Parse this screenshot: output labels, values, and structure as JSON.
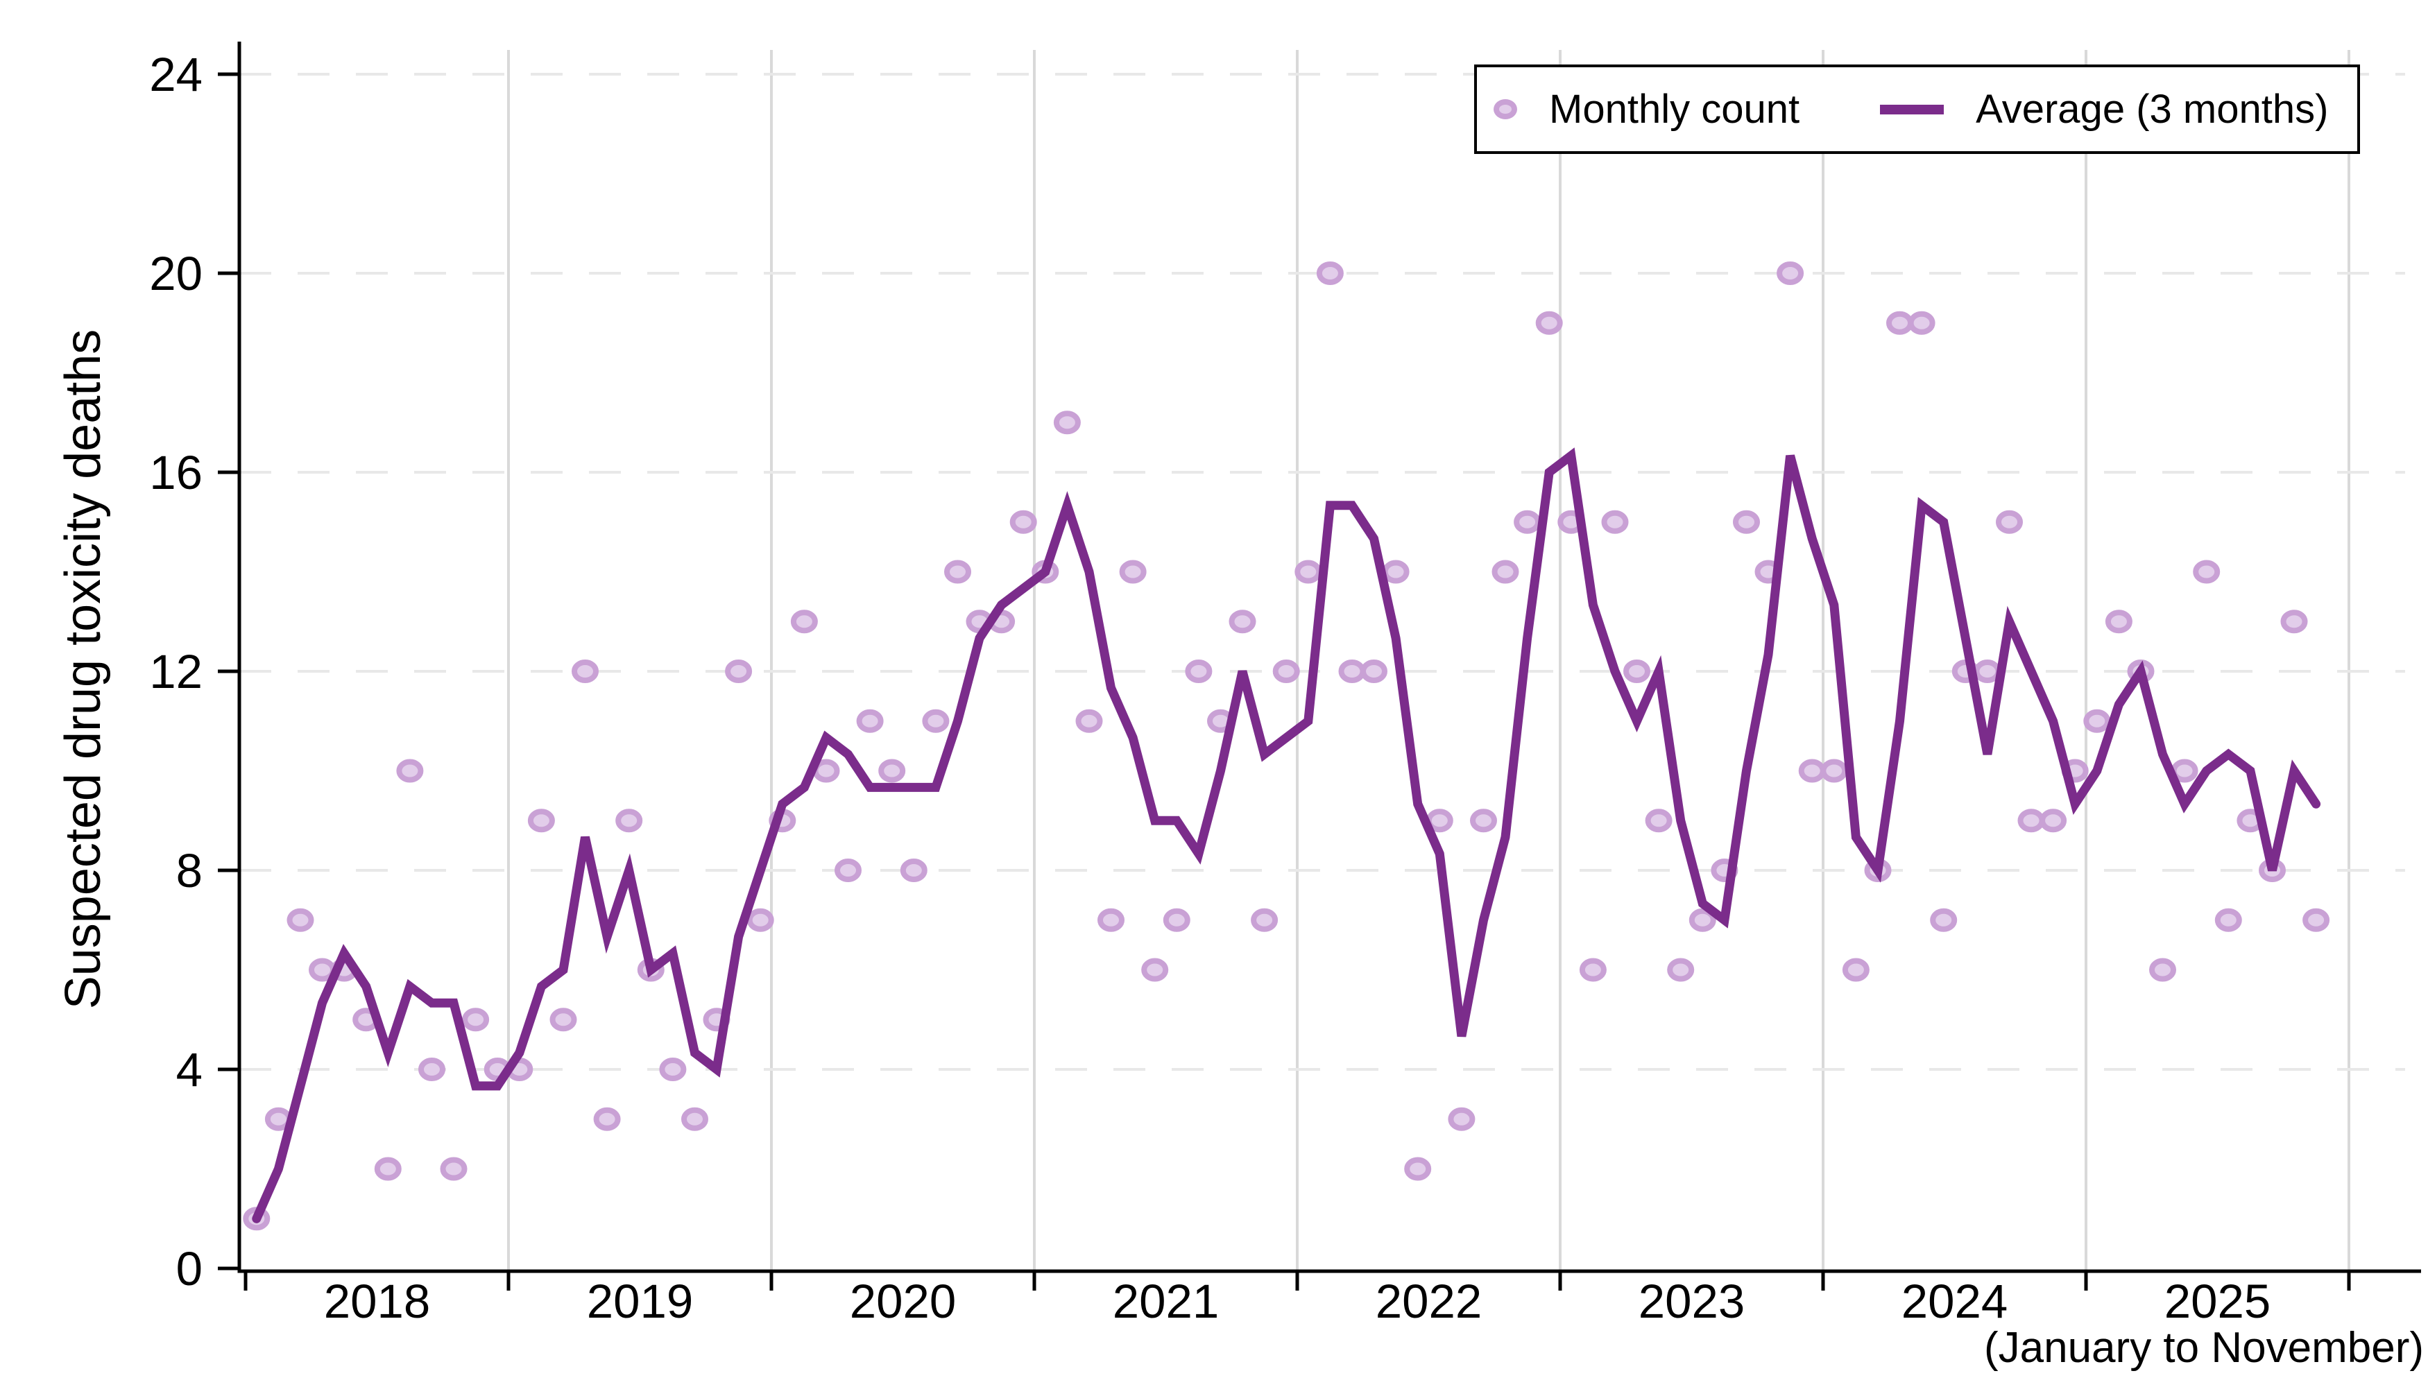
{
  "y_axis": {
    "title": "Suspected drug toxicity deaths",
    "ticks": [
      0,
      4,
      8,
      12,
      16,
      20,
      24
    ]
  },
  "x_axis": {
    "note": "(January to November)",
    "year_labels": [
      "2018",
      "2019",
      "2020",
      "2021",
      "2022",
      "2023",
      "2024",
      "2025"
    ]
  },
  "legend": {
    "items": [
      {
        "label": "Monthly count",
        "swatch": "circle-marker"
      },
      {
        "label": "Average (3 months)",
        "swatch": "line"
      }
    ]
  },
  "colors": {
    "line": "#7b2c8b",
    "marker_fill": "#e2cdea",
    "marker_stroke": "#c9a1d5",
    "grid_horizontal": "#e8e8e8",
    "grid_vertical": "#d9d9d9",
    "axis": "#000000",
    "text": "#000000",
    "background": "#ffffff"
  },
  "chart_data": {
    "type": "scatter",
    "title": "",
    "xlabel": "",
    "ylabel": "Suspected drug toxicity deaths",
    "ylim": [
      0,
      24
    ],
    "yticks": [
      0,
      4,
      8,
      12,
      16,
      20,
      24
    ],
    "grid": true,
    "legend_position": "top-right",
    "x_coverage_note": "monthly data, January 2018 through November 2025",
    "years": [
      {
        "year": "2018",
        "values": [
          1,
          3,
          7,
          6,
          6,
          5,
          2,
          10,
          4,
          2,
          5,
          4
        ]
      },
      {
        "year": "2019",
        "values": [
          4,
          9,
          5,
          12,
          3,
          9,
          6,
          4,
          3,
          5,
          12,
          7
        ]
      },
      {
        "year": "2020",
        "values": [
          9,
          13,
          10,
          8,
          11,
          10,
          8,
          11,
          14,
          13,
          13,
          15
        ]
      },
      {
        "year": "2021",
        "values": [
          14,
          17,
          11,
          7,
          14,
          6,
          7,
          12,
          11,
          13,
          7,
          12
        ]
      },
      {
        "year": "2022",
        "values": [
          14,
          20,
          12,
          12,
          14,
          2,
          9,
          3,
          9,
          14,
          15,
          19
        ]
      },
      {
        "year": "2023",
        "values": [
          15,
          6,
          15,
          12,
          9,
          6,
          7,
          8,
          15,
          14,
          20,
          10
        ]
      },
      {
        "year": "2024",
        "values": [
          10,
          6,
          8,
          19,
          19,
          7,
          12,
          12,
          15,
          9,
          9,
          10
        ]
      },
      {
        "year": "2025",
        "values": [
          11,
          13,
          12,
          6,
          10,
          14,
          7,
          9,
          8,
          13,
          7
        ]
      }
    ],
    "series": [
      {
        "name": "Monthly count",
        "type": "scatter"
      },
      {
        "name": "Average (3 months)",
        "type": "line",
        "window": 3,
        "derived": "trailing mean of monthly counts"
      }
    ]
  }
}
